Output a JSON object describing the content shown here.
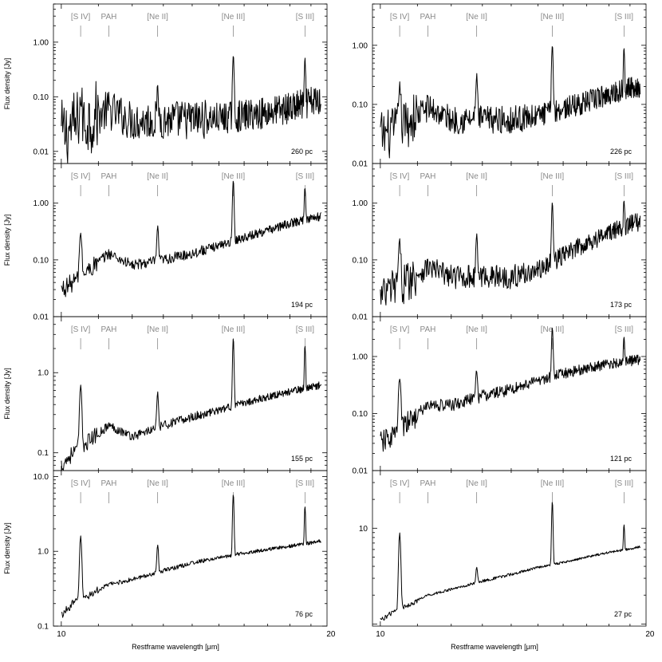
{
  "figure": {
    "xlabel": "Restframe wavelength [μm]",
    "ylabel": "Flux density [Jy]"
  },
  "line_labels": [
    {
      "label": "[S IV]",
      "wavelength": 10.51
    },
    {
      "label": "PAH",
      "wavelength": 11.3
    },
    {
      "label": "[Ne II]",
      "wavelength": 12.81
    },
    {
      "label": "[Ne III]",
      "wavelength": 15.56
    },
    {
      "label": "[S III]",
      "wavelength": 18.71
    }
  ],
  "chart_data": [
    {
      "type": "line",
      "annotation": "260 pc",
      "xlim": [
        9.8,
        19.8
      ],
      "ylim": [
        0.006,
        5.0
      ],
      "yscale": "log",
      "yticks": [
        0.01,
        0.1,
        1.0
      ],
      "ytick_labels": [
        "0.01",
        "0.10",
        "1.00"
      ],
      "series": [
        {
          "x": [
            10.0,
            10.3,
            11.3,
            12.0,
            13.0,
            14.0,
            15.0,
            16.0,
            17.0,
            18.0,
            19.0,
            19.5
          ],
          "y": [
            0.02,
            0.028,
            0.058,
            0.036,
            0.038,
            0.038,
            0.04,
            0.045,
            0.052,
            0.062,
            0.078,
            0.09
          ]
        }
      ],
      "lines": [
        {
          "x": 10.51,
          "peak": 0.085
        },
        {
          "x": 12.81,
          "peak": 0.12
        },
        {
          "x": 15.56,
          "peak": 0.55
        },
        {
          "x": 18.71,
          "peak": 0.45
        }
      ],
      "noise": 0.38
    },
    {
      "type": "line",
      "annotation": "226 pc",
      "xlim": [
        9.8,
        19.8
      ],
      "ylim": [
        0.01,
        5.0
      ],
      "yscale": "log",
      "yticks": [
        0.01,
        0.1,
        1.0
      ],
      "ytick_labels": [
        "0.01",
        "0.10",
        "1.00"
      ],
      "series": [
        {
          "x": [
            10.0,
            10.3,
            11.3,
            12.0,
            13.0,
            14.0,
            15.0,
            16.0,
            17.0,
            18.0,
            19.0,
            19.5
          ],
          "y": [
            0.03,
            0.032,
            0.09,
            0.055,
            0.055,
            0.055,
            0.065,
            0.085,
            0.11,
            0.15,
            0.19,
            0.2
          ]
        }
      ],
      "lines": [
        {
          "x": 10.51,
          "peak": 0.2
        },
        {
          "x": 12.81,
          "peak": 0.3
        },
        {
          "x": 15.56,
          "peak": 1.0
        },
        {
          "x": 18.71,
          "peak": 0.95
        }
      ],
      "noise": 0.25
    },
    {
      "type": "line",
      "annotation": "194 pc",
      "xlim": [
        9.8,
        19.8
      ],
      "ylim": [
        0.01,
        5.0
      ],
      "yscale": "log",
      "yticks": [
        0.01,
        0.1,
        1.0
      ],
      "ytick_labels": [
        "0.01",
        "0.10",
        "1.00"
      ],
      "series": [
        {
          "x": [
            10.0,
            10.3,
            11.3,
            12.0,
            13.0,
            14.0,
            15.0,
            16.0,
            17.0,
            18.0,
            19.0,
            19.5
          ],
          "y": [
            0.03,
            0.04,
            0.13,
            0.08,
            0.1,
            0.13,
            0.18,
            0.25,
            0.33,
            0.44,
            0.55,
            0.58
          ]
        }
      ],
      "lines": [
        {
          "x": 10.51,
          "peak": 0.3
        },
        {
          "x": 12.81,
          "peak": 0.38
        },
        {
          "x": 15.56,
          "peak": 2.5
        },
        {
          "x": 18.71,
          "peak": 1.9
        }
      ],
      "noise": 0.1
    },
    {
      "type": "line",
      "annotation": "173 pc",
      "xlim": [
        9.8,
        19.8
      ],
      "ylim": [
        0.01,
        5.0
      ],
      "yscale": "log",
      "yticks": [
        0.01,
        0.1,
        1.0
      ],
      "ytick_labels": [
        "0.01",
        "0.10",
        "1.00"
      ],
      "series": [
        {
          "x": [
            10.0,
            10.3,
            11.3,
            12.0,
            13.0,
            14.0,
            15.0,
            16.0,
            17.0,
            18.0,
            19.0,
            19.5
          ],
          "y": [
            0.02,
            0.03,
            0.075,
            0.05,
            0.052,
            0.05,
            0.065,
            0.12,
            0.2,
            0.3,
            0.42,
            0.48
          ]
        }
      ],
      "lines": [
        {
          "x": 10.51,
          "peak": 0.19
        },
        {
          "x": 12.81,
          "peak": 0.26
        },
        {
          "x": 15.56,
          "peak": 1.0
        },
        {
          "x": 18.71,
          "peak": 1.2
        }
      ],
      "noise": 0.22
    },
    {
      "type": "line",
      "annotation": "155 pc",
      "xlim": [
        9.8,
        19.8
      ],
      "ylim": [
        0.06,
        5.0
      ],
      "yscale": "log",
      "yticks": [
        0.1,
        1.0
      ],
      "ytick_labels": [
        "0.1",
        "1.0"
      ],
      "series": [
        {
          "x": [
            10.0,
            10.3,
            11.3,
            12.0,
            13.0,
            14.0,
            15.0,
            16.0,
            17.0,
            18.0,
            19.0,
            19.5
          ],
          "y": [
            0.07,
            0.1,
            0.22,
            0.16,
            0.22,
            0.28,
            0.34,
            0.42,
            0.5,
            0.58,
            0.66,
            0.7
          ]
        }
      ],
      "lines": [
        {
          "x": 10.51,
          "peak": 0.7
        },
        {
          "x": 12.81,
          "peak": 0.55
        },
        {
          "x": 15.56,
          "peak": 2.7
        },
        {
          "x": 18.71,
          "peak": 2.2
        }
      ],
      "noise": 0.06
    },
    {
      "type": "line",
      "annotation": "121 pc",
      "xlim": [
        9.8,
        19.8
      ],
      "ylim": [
        0.01,
        5.0
      ],
      "yscale": "log",
      "yticks": [
        0.01,
        0.1,
        1.0
      ],
      "ytick_labels": [
        "0.01",
        "0.10",
        "1.00"
      ],
      "series": [
        {
          "x": [
            10.0,
            10.3,
            11.3,
            12.0,
            13.0,
            14.0,
            15.0,
            16.0,
            17.0,
            18.0,
            19.0,
            19.5
          ],
          "y": [
            0.03,
            0.04,
            0.14,
            0.14,
            0.2,
            0.27,
            0.38,
            0.5,
            0.62,
            0.74,
            0.84,
            0.88
          ]
        }
      ],
      "lines": [
        {
          "x": 10.51,
          "peak": 0.42
        },
        {
          "x": 12.81,
          "peak": 0.58
        },
        {
          "x": 15.56,
          "peak": 3.2
        },
        {
          "x": 18.71,
          "peak": 2.3
        }
      ],
      "noise": 0.12
    },
    {
      "type": "line",
      "annotation": "76 pc",
      "xlim": [
        9.8,
        19.8
      ],
      "ylim": [
        0.1,
        12.0
      ],
      "yscale": "log",
      "yticks": [
        0.1,
        1.0,
        10.0
      ],
      "ytick_labels": [
        "0.1",
        "1.0",
        "10.0"
      ],
      "series": [
        {
          "x": [
            10.0,
            10.3,
            11.3,
            12.0,
            13.0,
            14.0,
            15.0,
            16.0,
            17.0,
            18.0,
            19.0,
            19.5
          ],
          "y": [
            0.14,
            0.2,
            0.36,
            0.42,
            0.55,
            0.7,
            0.82,
            0.95,
            1.06,
            1.17,
            1.3,
            1.38
          ]
        }
      ],
      "lines": [
        {
          "x": 10.51,
          "peak": 1.6
        },
        {
          "x": 12.81,
          "peak": 1.25
        },
        {
          "x": 15.56,
          "peak": 5.8
        },
        {
          "x": 18.71,
          "peak": 4.0
        }
      ],
      "noise": 0.03
    },
    {
      "type": "line",
      "annotation": "27 pc",
      "xlim": [
        9.8,
        19.8
      ],
      "ylim": [
        0.95,
        40.0
      ],
      "yscale": "log",
      "yticks": [
        10.0
      ],
      "ytick_labels": [
        "10"
      ],
      "series": [
        {
          "x": [
            10.0,
            10.3,
            11.3,
            12.0,
            13.0,
            14.0,
            15.0,
            16.0,
            17.0,
            18.0,
            19.0,
            19.5
          ],
          "y": [
            1.1,
            1.3,
            2.0,
            2.3,
            2.8,
            3.3,
            3.9,
            4.4,
            5.0,
            5.6,
            6.1,
            6.4
          ]
        }
      ],
      "lines": [
        {
          "x": 10.51,
          "peak": 9.0
        },
        {
          "x": 12.81,
          "peak": 4.0
        },
        {
          "x": 15.56,
          "peak": 19.0
        },
        {
          "x": 18.71,
          "peak": 11.0
        }
      ],
      "noise": 0.015
    }
  ],
  "xaxis": {
    "ticks": [
      10,
      20
    ],
    "tick_labels": [
      "10",
      "20"
    ],
    "scale": "log"
  }
}
